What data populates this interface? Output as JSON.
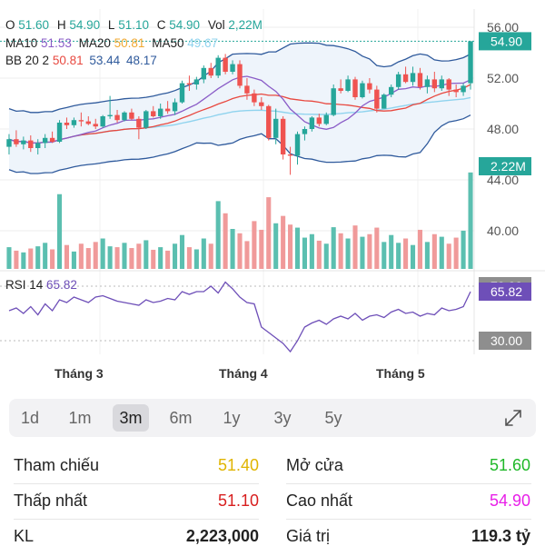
{
  "header": {
    "ohlc": [
      {
        "label": "O",
        "value": "51.60"
      },
      {
        "label": "H",
        "value": "54.90"
      },
      {
        "label": "L",
        "value": "51.10"
      },
      {
        "label": "C",
        "value": "54.90"
      },
      {
        "label": "Vol",
        "value": "2,22M"
      }
    ],
    "ma": [
      {
        "label": "MA10",
        "value": "51.53",
        "color": "#8a5cc7"
      },
      {
        "label": "MA20",
        "value": "50.81",
        "color": "#f0a830"
      },
      {
        "label": "MA50",
        "value": "49.67",
        "color": "#8fd3ee"
      }
    ],
    "bb": {
      "label": "BB 20 2",
      "v1": "50.81",
      "v2": "53.44",
      "v3": "48.17"
    },
    "rsi": {
      "label": "RSI 14",
      "value": "65.82"
    }
  },
  "price_axis": {
    "ticks": [
      "56.00",
      "52.00",
      "48.00",
      "44.00",
      "40.00"
    ],
    "last_price": "54.90",
    "last_volume": "2.22M"
  },
  "rsi_axis": {
    "upper": "70.00",
    "lower": "30.00",
    "current": "65.82"
  },
  "months": [
    "Tháng 3",
    "Tháng 4",
    "Tháng 5"
  ],
  "tabs": [
    {
      "label": "1d",
      "active": false
    },
    {
      "label": "1m",
      "active": false
    },
    {
      "label": "3m",
      "active": true
    },
    {
      "label": "6m",
      "active": false
    },
    {
      "label": "1y",
      "active": false
    },
    {
      "label": "3y",
      "active": false
    },
    {
      "label": "5y",
      "active": false
    }
  ],
  "stats": {
    "ref_label": "Tham chiếu",
    "ref_value": "51.40",
    "open_label": "Mở cửa",
    "open_value": "51.60",
    "low_label": "Thấp nhất",
    "low_value": "51.10",
    "high_label": "Cao nhất",
    "high_value": "54.90",
    "vol_label": "KL",
    "vol_value": "2,223,000",
    "val_label": "Giá trị",
    "val_value": "119.3 tỷ"
  },
  "colors": {
    "up": "#26a69a",
    "down": "#ef5350",
    "vol_up": "#5bbfb0",
    "vol_down": "#f09a9a",
    "ma10": "#8a5cc7",
    "ma20": "#f0a830",
    "ma50": "#8fd3ee",
    "bb": "#2f5a9c",
    "bb_mid": "#e8483f",
    "rsi": "#6e4fb8"
  },
  "chart_data": {
    "type": "candlestick",
    "ylim": [
      37,
      57
    ],
    "candles": [
      {
        "o": 46.6,
        "h": 47.6,
        "l": 46.0,
        "c": 47.2,
        "v": 0.5
      },
      {
        "o": 47.2,
        "h": 47.9,
        "l": 46.6,
        "c": 46.8,
        "v": 0.42
      },
      {
        "o": 46.8,
        "h": 47.4,
        "l": 46.4,
        "c": 47.1,
        "v": 0.38
      },
      {
        "o": 47.1,
        "h": 47.5,
        "l": 46.2,
        "c": 46.5,
        "v": 0.47
      },
      {
        "o": 46.5,
        "h": 47.2,
        "l": 46.0,
        "c": 46.9,
        "v": 0.52
      },
      {
        "o": 46.9,
        "h": 47.6,
        "l": 46.5,
        "c": 47.3,
        "v": 0.6
      },
      {
        "o": 47.3,
        "h": 47.8,
        "l": 46.9,
        "c": 47.0,
        "v": 0.45
      },
      {
        "o": 47.0,
        "h": 48.7,
        "l": 46.9,
        "c": 48.5,
        "v": 1.72
      },
      {
        "o": 48.5,
        "h": 48.9,
        "l": 48.0,
        "c": 48.3,
        "v": 0.55
      },
      {
        "o": 48.3,
        "h": 48.9,
        "l": 48.1,
        "c": 48.7,
        "v": 0.4
      },
      {
        "o": 48.7,
        "h": 49.3,
        "l": 48.2,
        "c": 48.6,
        "v": 0.58
      },
      {
        "o": 48.6,
        "h": 49.0,
        "l": 48.3,
        "c": 48.4,
        "v": 0.48
      },
      {
        "o": 48.4,
        "h": 48.8,
        "l": 48.0,
        "c": 48.2,
        "v": 0.62
      },
      {
        "o": 48.2,
        "h": 49.1,
        "l": 48.1,
        "c": 49.0,
        "v": 0.7
      },
      {
        "o": 49.0,
        "h": 50.6,
        "l": 48.8,
        "c": 49.1,
        "v": 0.52
      },
      {
        "o": 49.1,
        "h": 49.5,
        "l": 48.5,
        "c": 48.7,
        "v": 0.5
      },
      {
        "o": 48.7,
        "h": 49.4,
        "l": 48.6,
        "c": 49.3,
        "v": 0.6
      },
      {
        "o": 49.3,
        "h": 49.6,
        "l": 48.7,
        "c": 48.8,
        "v": 0.48
      },
      {
        "o": 48.8,
        "h": 49.0,
        "l": 47.2,
        "c": 48.1,
        "v": 0.58
      },
      {
        "o": 48.1,
        "h": 49.5,
        "l": 48.0,
        "c": 49.4,
        "v": 0.66
      },
      {
        "o": 49.4,
        "h": 49.8,
        "l": 48.9,
        "c": 49.0,
        "v": 0.44
      },
      {
        "o": 49.0,
        "h": 50.0,
        "l": 48.8,
        "c": 49.6,
        "v": 0.5
      },
      {
        "o": 49.6,
        "h": 50.2,
        "l": 49.2,
        "c": 49.4,
        "v": 0.42
      },
      {
        "o": 49.4,
        "h": 50.4,
        "l": 49.1,
        "c": 50.1,
        "v": 0.58
      },
      {
        "o": 50.1,
        "h": 51.8,
        "l": 50.0,
        "c": 51.6,
        "v": 0.78
      },
      {
        "o": 51.6,
        "h": 52.2,
        "l": 51.0,
        "c": 51.5,
        "v": 0.5
      },
      {
        "o": 51.5,
        "h": 52.1,
        "l": 51.1,
        "c": 51.9,
        "v": 0.45
      },
      {
        "o": 51.9,
        "h": 53.0,
        "l": 51.6,
        "c": 52.8,
        "v": 0.7
      },
      {
        "o": 52.8,
        "h": 53.2,
        "l": 52.0,
        "c": 52.2,
        "v": 0.58
      },
      {
        "o": 52.2,
        "h": 53.8,
        "l": 52.0,
        "c": 53.6,
        "v": 1.56
      },
      {
        "o": 53.6,
        "h": 53.9,
        "l": 52.3,
        "c": 52.5,
        "v": 1.28
      },
      {
        "o": 52.5,
        "h": 53.4,
        "l": 52.3,
        "c": 53.1,
        "v": 0.92
      },
      {
        "o": 53.1,
        "h": 53.4,
        "l": 51.2,
        "c": 51.4,
        "v": 0.82
      },
      {
        "o": 51.4,
        "h": 52.0,
        "l": 50.3,
        "c": 50.8,
        "v": 0.64
      },
      {
        "o": 50.8,
        "h": 51.1,
        "l": 49.8,
        "c": 50.1,
        "v": 1.1
      },
      {
        "o": 50.1,
        "h": 50.5,
        "l": 49.5,
        "c": 49.8,
        "v": 0.9
      },
      {
        "o": 49.8,
        "h": 49.9,
        "l": 47.1,
        "c": 47.3,
        "v": 1.65
      },
      {
        "o": 47.3,
        "h": 49.6,
        "l": 46.8,
        "c": 48.8,
        "v": 1.05
      },
      {
        "o": 48.8,
        "h": 49.0,
        "l": 45.6,
        "c": 46.0,
        "v": 1.22
      },
      {
        "o": 46.0,
        "h": 46.6,
        "l": 44.4,
        "c": 45.9,
        "v": 1.02
      },
      {
        "o": 45.9,
        "h": 47.8,
        "l": 45.2,
        "c": 47.6,
        "v": 0.95
      },
      {
        "o": 47.6,
        "h": 48.2,
        "l": 47.1,
        "c": 48.0,
        "v": 0.72
      },
      {
        "o": 48.0,
        "h": 49.0,
        "l": 47.8,
        "c": 48.9,
        "v": 0.8
      },
      {
        "o": 48.9,
        "h": 49.2,
        "l": 48.2,
        "c": 48.4,
        "v": 0.65
      },
      {
        "o": 48.4,
        "h": 49.3,
        "l": 48.3,
        "c": 49.1,
        "v": 0.58
      },
      {
        "o": 49.1,
        "h": 51.5,
        "l": 49.0,
        "c": 51.2,
        "v": 0.96
      },
      {
        "o": 51.2,
        "h": 51.9,
        "l": 50.8,
        "c": 51.0,
        "v": 0.82
      },
      {
        "o": 51.0,
        "h": 52.2,
        "l": 50.9,
        "c": 51.9,
        "v": 0.7
      },
      {
        "o": 51.9,
        "h": 52.1,
        "l": 50.3,
        "c": 50.5,
        "v": 1.0
      },
      {
        "o": 50.5,
        "h": 51.8,
        "l": 50.4,
        "c": 51.6,
        "v": 0.74
      },
      {
        "o": 51.6,
        "h": 52.0,
        "l": 50.8,
        "c": 51.1,
        "v": 0.8
      },
      {
        "o": 51.1,
        "h": 51.4,
        "l": 49.3,
        "c": 49.6,
        "v": 0.95
      },
      {
        "o": 49.6,
        "h": 50.8,
        "l": 49.6,
        "c": 50.7,
        "v": 0.62
      },
      {
        "o": 50.7,
        "h": 51.5,
        "l": 50.5,
        "c": 51.3,
        "v": 0.78
      },
      {
        "o": 51.3,
        "h": 52.5,
        "l": 51.1,
        "c": 52.3,
        "v": 0.6
      },
      {
        "o": 52.3,
        "h": 52.9,
        "l": 51.6,
        "c": 51.7,
        "v": 0.7
      },
      {
        "o": 51.7,
        "h": 52.9,
        "l": 51.4,
        "c": 52.4,
        "v": 0.55
      },
      {
        "o": 52.4,
        "h": 52.8,
        "l": 51.1,
        "c": 51.3,
        "v": 0.9
      },
      {
        "o": 51.3,
        "h": 52.2,
        "l": 50.8,
        "c": 51.9,
        "v": 0.62
      },
      {
        "o": 51.9,
        "h": 52.5,
        "l": 50.9,
        "c": 51.2,
        "v": 0.8
      },
      {
        "o": 51.2,
        "h": 52.2,
        "l": 51.0,
        "c": 51.9,
        "v": 0.74
      },
      {
        "o": 51.9,
        "h": 52.0,
        "l": 50.6,
        "c": 51.1,
        "v": 0.58
      },
      {
        "o": 51.1,
        "h": 51.5,
        "l": 50.5,
        "c": 50.9,
        "v": 0.72
      },
      {
        "o": 50.9,
        "h": 51.6,
        "l": 50.6,
        "c": 51.4,
        "v": 0.88
      },
      {
        "o": 51.6,
        "h": 54.9,
        "l": 51.1,
        "c": 54.9,
        "v": 2.22
      }
    ],
    "rsi": [
      52,
      54,
      50,
      55,
      49,
      57,
      52,
      60,
      58,
      62,
      60,
      58,
      62,
      63,
      61,
      59,
      58,
      57,
      56,
      60,
      58,
      59,
      61,
      60,
      66,
      64,
      66,
      66,
      70,
      65,
      73,
      68,
      62,
      58,
      57,
      40,
      36,
      32,
      28,
      22,
      30,
      40,
      43,
      45,
      42,
      46,
      48,
      46,
      50,
      45,
      48,
      49,
      47,
      51,
      53,
      50,
      51,
      48,
      50,
      49,
      54,
      52,
      53,
      55,
      66
    ]
  }
}
